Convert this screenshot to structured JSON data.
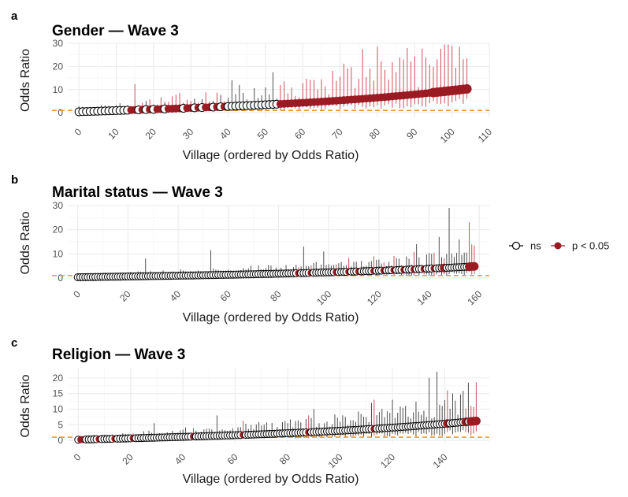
{
  "chart_data": [
    {
      "type": "scatter",
      "panel_label": "a",
      "title": "Gender — Wave 3",
      "xlabel": "Village (ordered by Odds Ratio)",
      "ylabel": "Odds Ratio",
      "n_points": 105,
      "xlim": [
        -3,
        110
      ],
      "ylim": [
        -2,
        30
      ],
      "x_ticks": [
        "0",
        "10",
        "20",
        "30",
        "40",
        "50",
        "60",
        "70",
        "80",
        "90",
        "100",
        "110"
      ],
      "y_ticks": [
        "0",
        "10",
        "20",
        "30"
      ],
      "reference_line": 1,
      "series": [
        {
          "name": "ns",
          "x_range": [
            0,
            53
          ],
          "or_range": [
            0.4,
            3.6
          ]
        },
        {
          "name": "p < 0.05",
          "x_range": [
            14,
            104
          ],
          "or_range": [
            2.2,
            10.3
          ]
        }
      ],
      "significant_indices": [
        14,
        15,
        17,
        19,
        21,
        22,
        24,
        25,
        26,
        27,
        29,
        30,
        32,
        34,
        35,
        37,
        39
      ],
      "spikes": {
        "upper_max": 28.8,
        "notable": [
          [
            15,
            12.4
          ],
          [
            41,
            14
          ],
          [
            43,
            12
          ],
          [
            52,
            17.5
          ],
          [
            54,
            12
          ],
          [
            76,
            27.5
          ],
          [
            80,
            28.5
          ],
          [
            87,
            23
          ],
          [
            100,
            28.8
          ],
          [
            102,
            28.5
          ],
          [
            104,
            23.5
          ]
        ]
      },
      "grid": true
    },
    {
      "type": "scatter",
      "panel_label": "b",
      "title": "Marital status — Wave 3",
      "xlabel": "Village (ordered by Odds Ratio)",
      "ylabel": "Odds Ratio",
      "n_points": 159,
      "xlim": [
        -4,
        164
      ],
      "ylim": [
        -1,
        30
      ],
      "x_ticks": [
        "0",
        "20",
        "40",
        "60",
        "80",
        "100",
        "120",
        "140",
        "160"
      ],
      "y_ticks": [
        "0",
        "10",
        "20",
        "30"
      ],
      "reference_line": 1,
      "series": [
        {
          "name": "ns",
          "x_range": [
            0,
            155
          ],
          "or_range": [
            0.3,
            3.0
          ]
        },
        {
          "name": "p < 0.05",
          "x_range": [
            88,
            158
          ],
          "or_range": [
            1.7,
            4.8
          ]
        }
      ],
      "significant_indices": [
        88,
        93,
        103,
        108,
        112,
        118,
        122,
        126,
        130,
        134,
        138,
        142,
        146
      ],
      "spikes": {
        "upper_max": 29,
        "notable": [
          [
            27,
            8
          ],
          [
            53,
            11.5
          ],
          [
            90,
            13
          ],
          [
            98,
            11
          ],
          [
            135,
            14
          ],
          [
            144,
            17
          ],
          [
            148,
            29
          ],
          [
            152,
            16
          ],
          [
            156,
            23
          ]
        ]
      },
      "grid": true
    },
    {
      "type": "scatter",
      "panel_label": "c",
      "title": "Religion — Wave 3",
      "xlabel": "Village (ordered by Odds Ratio)",
      "ylabel": "Odds Ratio",
      "n_points": 153,
      "xlim": [
        -4,
        157
      ],
      "ylim": [
        -1,
        23
      ],
      "x_ticks": [
        "0",
        "20",
        "40",
        "60",
        "80",
        "100",
        "120",
        "140"
      ],
      "y_ticks": [
        "0",
        "5",
        "10",
        "15",
        "20"
      ],
      "reference_line": 1,
      "series": [
        {
          "name": "ns",
          "x_range": [
            1,
            149
          ],
          "or_range": [
            0.2,
            3.2
          ]
        },
        {
          "name": "p < 0.05",
          "x_range": [
            1,
            152
          ],
          "or_range": [
            0.2,
            6.2
          ]
        }
      ],
      "significant_indices": [
        1,
        2,
        8,
        14,
        21,
        44,
        63,
        88,
        113,
        141,
        148
      ],
      "spikes": {
        "upper_max": 22,
        "notable": [
          [
            29,
            5.5
          ],
          [
            53,
            8
          ],
          [
            90,
            10
          ],
          [
            112,
            12
          ],
          [
            120,
            13
          ],
          [
            134,
            20
          ],
          [
            137,
            22
          ],
          [
            143,
            15
          ],
          [
            149,
            18.5
          ]
        ]
      },
      "grid": true
    }
  ],
  "legend": {
    "items": [
      {
        "label": "ns",
        "color": "#000000",
        "filled": false
      },
      {
        "label": "p < 0.05",
        "color": "#9b1b22",
        "filled": true
      }
    ],
    "position": "right"
  },
  "colors": {
    "significant": "#9b1b22",
    "significant_bar": "#c94f5a",
    "ns_bar": "#4d4d4d",
    "reference_line": "#e89a2c",
    "grid": "#ebebeb"
  }
}
